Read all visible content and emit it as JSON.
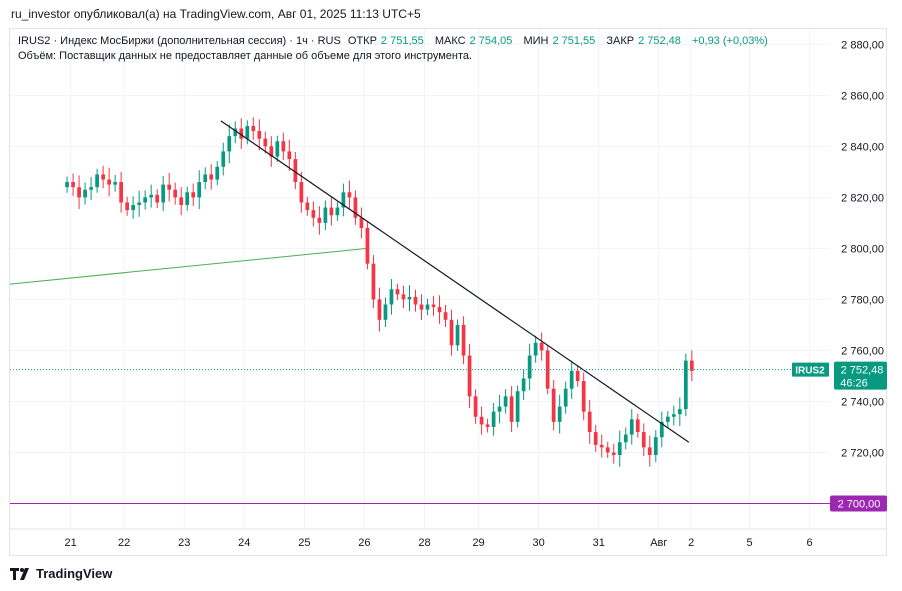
{
  "caption": "ru_investor опубликовал(а) на TradingView.com, Авг 01, 2025 11:13 UTC+5",
  "legend": {
    "symbol_line": "IRUS2 · Индекс МосБиржи (дополнительная сессия) · 1ч · RUS",
    "open_label": "ОТКР",
    "open_value": "2 751,55",
    "high_label": "МАКС",
    "high_value": "2 754,05",
    "low_label": "МИН",
    "low_value": "2 751,55",
    "close_label": "ЗАКР",
    "close_value": "2 752,48",
    "change": "+0,93 (+0,03%)",
    "volume_note": "Объём: Поставщик данных не предоставляет данные об объеме для этого инструмента."
  },
  "footer": {
    "brand": "TradingView"
  },
  "colors": {
    "up": "#089981",
    "down": "#f23645",
    "trend": "#131722",
    "support": "#4caf50",
    "level": "#9c27b0",
    "price_tag": "#089981"
  },
  "chart_data": {
    "type": "candlestick",
    "title": "IRUS2 · Индекс МосБиржи (дополнительная сессия) · 1ч",
    "ylim": [
      2690,
      2886
    ],
    "y_ticks": [
      "2 880,00",
      "2 860,00",
      "2 840,00",
      "2 820,00",
      "2 800,00",
      "2 780,00",
      "2 760,00",
      "2 740,00",
      "2 720,00"
    ],
    "y_tick_values": [
      2880,
      2860,
      2840,
      2820,
      2800,
      2780,
      2760,
      2740,
      2720
    ],
    "x_ticks": [
      "21",
      "22",
      "23",
      "24",
      "25",
      "26",
      "28",
      "29",
      "30",
      "31",
      "Авг",
      "2",
      "5",
      "6"
    ],
    "x_tick_positions": [
      0.6,
      9.5,
      19.5,
      29.5,
      39.5,
      49.5,
      59.5,
      68.5,
      78.5,
      88.5,
      98.5,
      103.9,
      113.6,
      123.6
    ],
    "x_range": [
      -9.5,
      127
    ],
    "current_price": {
      "label": "IRUS2",
      "value": "2 752,48",
      "timer": "46:26",
      "y": 2752.48
    },
    "level_line": {
      "value": 2700,
      "label": "2 700,00"
    },
    "trendline": {
      "x1": 25.6,
      "y1": 2850,
      "x2": 103.5,
      "y2": 2724
    },
    "support_line": {
      "x1": -9.5,
      "y1": 2786,
      "x2": 50,
      "y2": 2800
    },
    "closes": [
      2826,
      2824,
      2820,
      2823,
      2824,
      2829,
      2827,
      2825,
      2826,
      2818,
      2815,
      2817,
      2818,
      2820,
      2821,
      2818,
      2825,
      2823,
      2820,
      2817,
      2822,
      2820,
      2826,
      2829,
      2827,
      2832,
      2838,
      2844,
      2847,
      2843,
      2848,
      2846,
      2843,
      2840,
      2836,
      2842,
      2838,
      2835,
      2826,
      2818,
      2815,
      2812,
      2810,
      2816,
      2813,
      2816,
      2822,
      2820,
      2812,
      2808,
      2794,
      2780,
      2772,
      2778,
      2784,
      2782,
      2780,
      2781,
      2778,
      2776,
      2778,
      2777,
      2775,
      2772,
      2762,
      2770,
      2758,
      2742,
      2734,
      2731,
      2730,
      2736,
      2738,
      2742,
      2732,
      2744,
      2749,
      2758,
      2763,
      2760,
      2745,
      2732,
      2738,
      2745,
      2752,
      2748,
      2736,
      2728,
      2723,
      2722,
      2720,
      2719,
      2724,
      2727,
      2733,
      2728,
      2722,
      2719,
      2726,
      2732,
      2734,
      2735,
      2737,
      2756,
      2752
    ]
  }
}
